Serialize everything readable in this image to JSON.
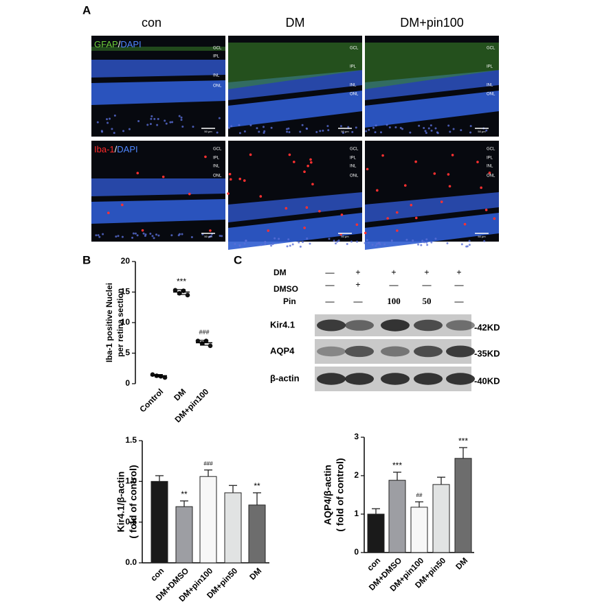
{
  "panel_labels": [
    "A",
    "B",
    "C"
  ],
  "micrographs": {
    "columns": [
      "con",
      "DM",
      "DM+pin100"
    ],
    "rows": [
      {
        "stain": "GFAP",
        "sep": "/",
        "counter": "DAPI"
      },
      {
        "stain": "Iba-1",
        "sep": "/",
        "counter": "DAPI"
      }
    ],
    "layers": [
      "GCL",
      "IPL",
      "INL",
      "ONL"
    ],
    "scale_bar": "50 μm"
  },
  "blot": {
    "conditions": [
      {
        "label": "DM",
        "lanes": [
          "—",
          "+",
          "+",
          "+",
          "+"
        ]
      },
      {
        "label": "DMSO",
        "lanes": [
          "—",
          "+",
          "—",
          "—",
          "—"
        ]
      },
      {
        "label": "Pin",
        "lanes": [
          "—",
          "—",
          "100",
          "50",
          "—"
        ]
      }
    ],
    "bands": [
      {
        "label": "Kir4.1",
        "size": "-42KD"
      },
      {
        "label": "AQP4",
        "size": "-35KD"
      },
      {
        "label": "β-actin",
        "size": "-40KD"
      }
    ]
  },
  "chart_data": [
    {
      "type": "scatter",
      "ylabel": [
        "Iba-1 positive Nuclei",
        "per retina section"
      ],
      "categories": [
        "Control",
        "DM",
        "DM+pin100"
      ],
      "values": [
        [
          1.5,
          1.3,
          1.2,
          1.0
        ],
        [
          15.3,
          14.8,
          15.2,
          14.5
        ],
        [
          7.0,
          6.6,
          7.0,
          6.2
        ]
      ],
      "means": [
        1.3,
        15.0,
        6.7
      ],
      "errors": [
        0.2,
        0.4,
        0.4
      ],
      "annotations": [
        null,
        "***",
        "###"
      ],
      "ylim": [
        0,
        20
      ],
      "yticks": [
        0,
        5,
        10,
        15,
        20
      ],
      "color": "#111111"
    },
    {
      "type": "bar",
      "ylabel": [
        "Kir4.1/β-actin",
        "( fold of control)"
      ],
      "categories": [
        "con",
        "DM+DMSO",
        "DM+pin100",
        "DM+pin50",
        "DM"
      ],
      "values": [
        1.0,
        0.69,
        1.06,
        0.86,
        0.71
      ],
      "errors": [
        0.07,
        0.07,
        0.08,
        0.09,
        0.15
      ],
      "annotations": [
        null,
        "**",
        "###",
        null,
        "**"
      ],
      "colors": [
        "#1a1a1a",
        "#9d9ea3",
        "#f7f7f7",
        "#e1e3e3",
        "#6d6d6d"
      ],
      "ylim": [
        0,
        1.5
      ],
      "yticks": [
        {
          "value": 0,
          "label": "0.0"
        },
        0.5,
        {
          "value": 1,
          "label": "1.0"
        },
        1.5
      ]
    },
    {
      "type": "bar",
      "ylabel": [
        "AQP4/β-actin",
        "( fold of control)"
      ],
      "categories": [
        "con",
        "DM+DMSO",
        "DM+pin100",
        "DM+pin50",
        "DM"
      ],
      "values": [
        1.0,
        1.88,
        1.18,
        1.77,
        2.45
      ],
      "errors": [
        0.14,
        0.21,
        0.14,
        0.19,
        0.28
      ],
      "annotations": [
        null,
        "***",
        "##",
        null,
        "***"
      ],
      "colors": [
        "#1a1a1a",
        "#9d9ea3",
        "#f7f7f7",
        "#e1e3e3",
        "#6d6d6d"
      ],
      "ylim": [
        0,
        3
      ],
      "yticks": [
        0,
        1,
        2,
        3
      ]
    }
  ]
}
